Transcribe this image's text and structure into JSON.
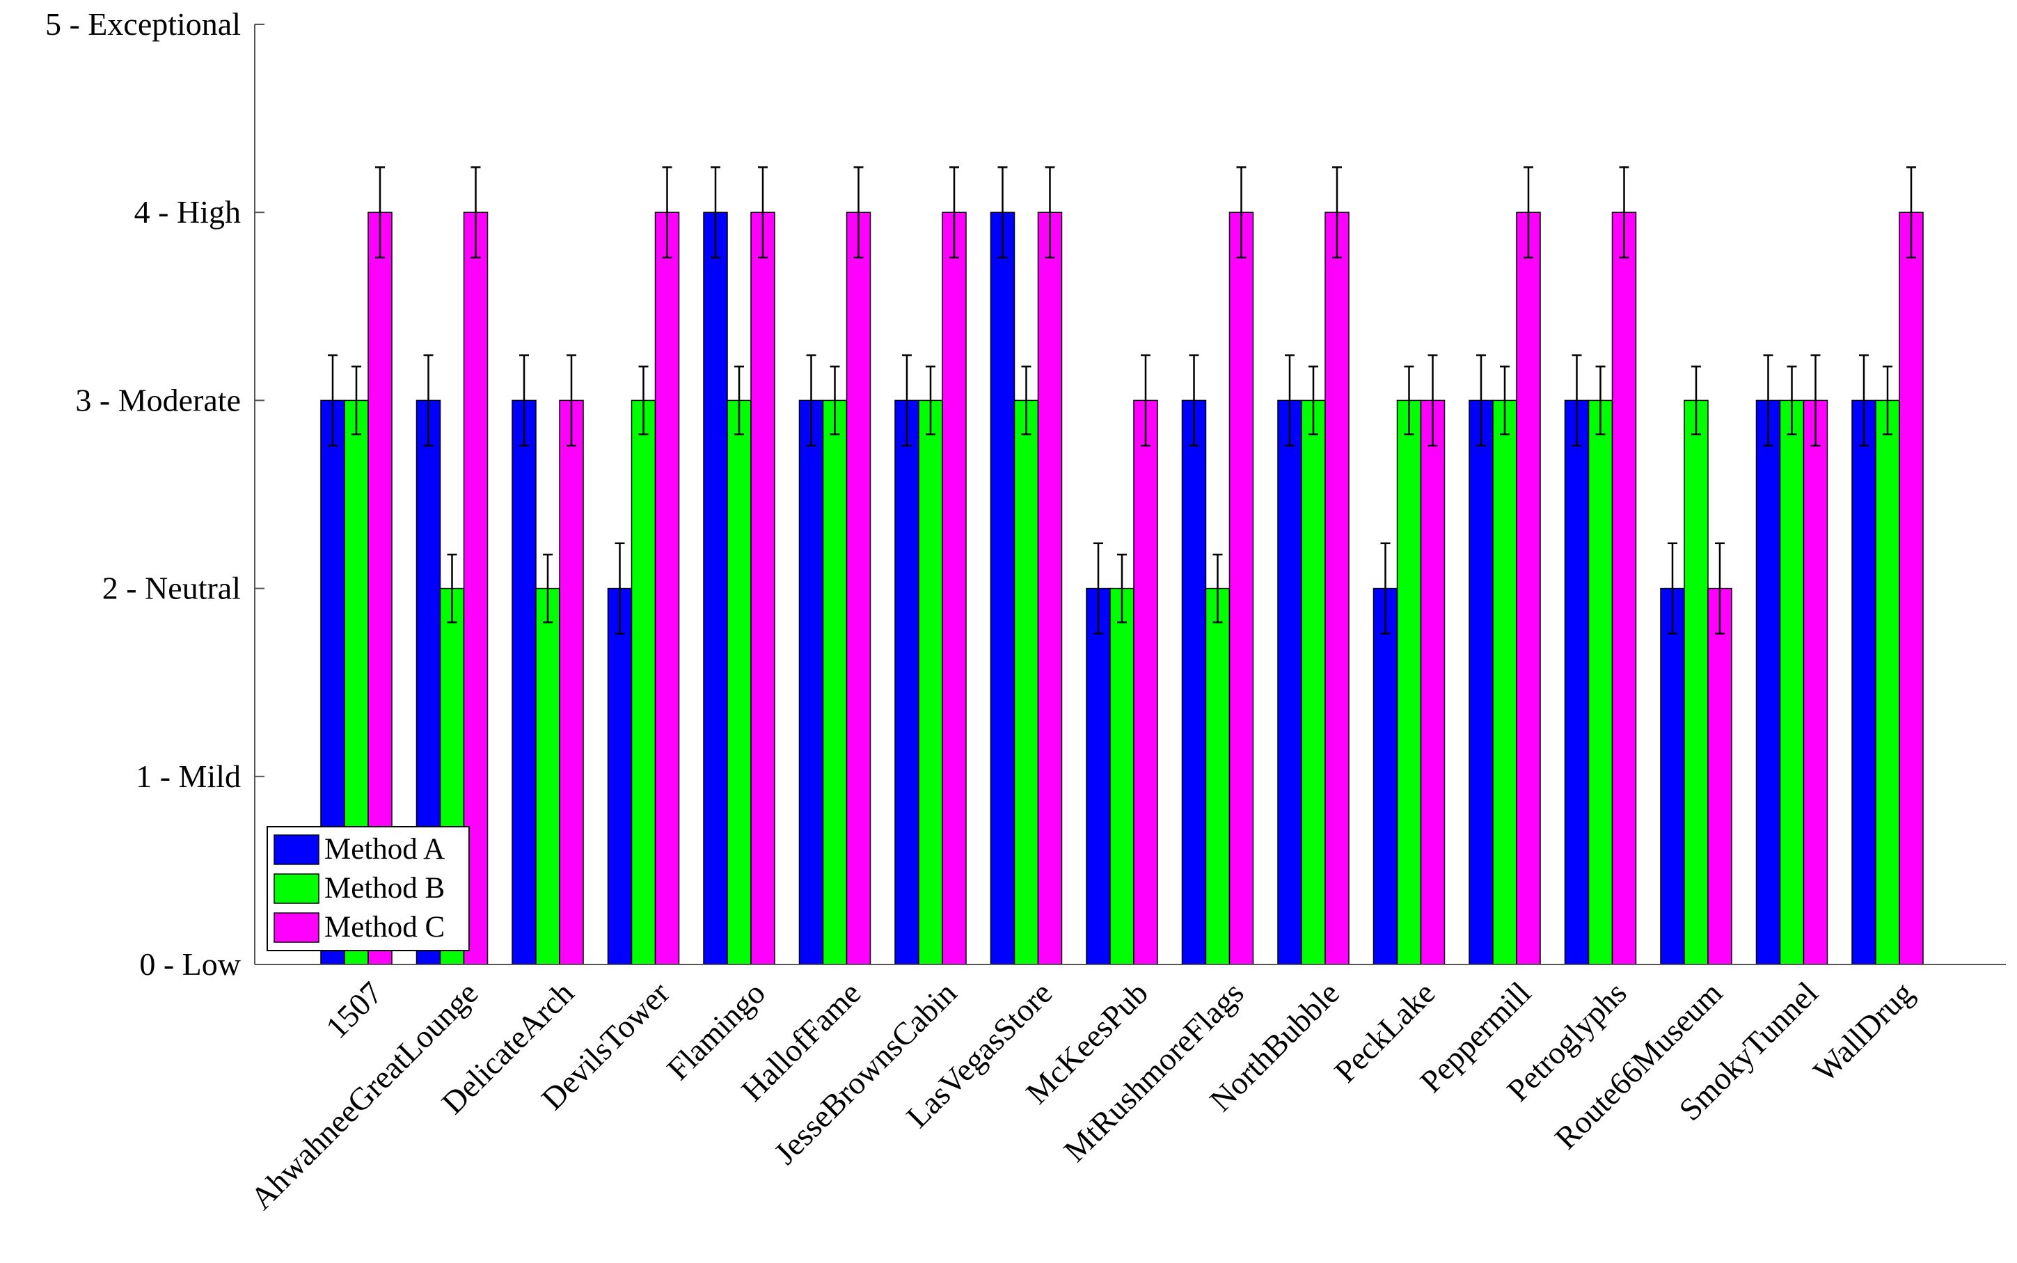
{
  "chart_data": {
    "type": "bar",
    "title": "",
    "xlabel": "",
    "ylabel": "",
    "ylim": [
      0,
      5
    ],
    "yticks": [
      0,
      1,
      2,
      3,
      4,
      5
    ],
    "ytick_labels": [
      "0 - Low",
      "1 - Mild",
      "2 - Neutral",
      "3 - Moderate",
      "4 - High",
      "5 - Exceptional"
    ],
    "categories": [
      "1507",
      "AhwahneeGreatLounge",
      "DelicateArch",
      "DevilsTower",
      "Flamingo",
      "HallofFame",
      "JesseBrownsCabin",
      "LasVegasStore",
      "McKeesPub",
      "MtRushmoreFlags",
      "NorthBubble",
      "PeckLake",
      "Peppermill",
      "Petroglyphs",
      "Route66Museum",
      "SmokyTunnel",
      "WallDrug"
    ],
    "series": [
      {
        "name": "Method A",
        "color": "#0000ff",
        "values": [
          3,
          3,
          3,
          2,
          4,
          3,
          3,
          4,
          2,
          3,
          3,
          2,
          3,
          3,
          2,
          3,
          3
        ],
        "error": 0.24
      },
      {
        "name": "Method B",
        "color": "#00ff00",
        "values": [
          3,
          2,
          2,
          3,
          3,
          3,
          3,
          3,
          2,
          2,
          3,
          3,
          3,
          3,
          3,
          3,
          3
        ],
        "error": 0.18
      },
      {
        "name": "Method C",
        "color": "#ff00ff",
        "values": [
          4,
          4,
          3,
          4,
          4,
          4,
          4,
          4,
          3,
          4,
          4,
          3,
          4,
          4,
          2,
          3,
          4
        ],
        "error": 0.24
      }
    ],
    "legend_position": "bottom-left",
    "grid": false
  }
}
